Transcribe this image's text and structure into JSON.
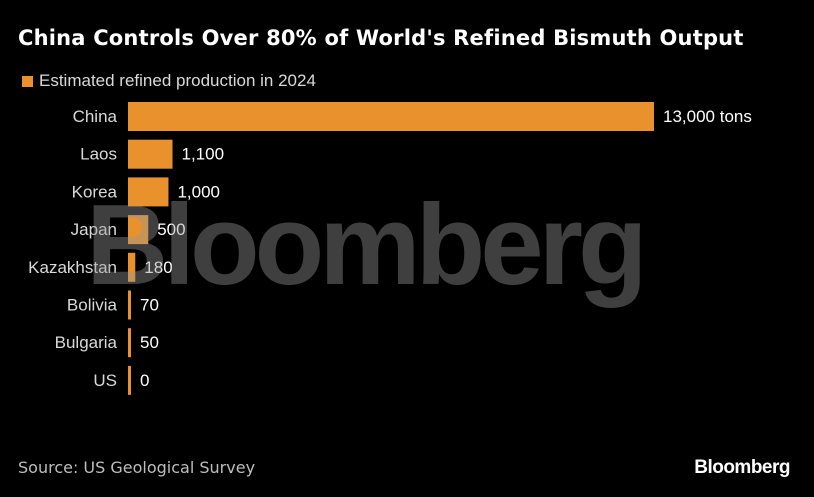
{
  "title": "China Controls Over 80% of World's Refined Bismuth Output",
  "legend": {
    "label": "Estimated refined production in 2024",
    "color": "#e8912d"
  },
  "source": "Source: US Geological Survey",
  "brand": "Bloomberg",
  "watermark": "Bloomberg",
  "chart_data": {
    "type": "bar",
    "orientation": "horizontal",
    "title": "China Controls Over 80% of World's Refined Bismuth Output",
    "categories": [
      "China",
      "Laos",
      "Korea",
      "Japan",
      "Kazakhstan",
      "Bolivia",
      "Bulgaria",
      "US"
    ],
    "series": [
      {
        "name": "Estimated refined production in 2024",
        "values": [
          13000,
          1100,
          1000,
          500,
          180,
          70,
          50,
          0
        ],
        "labels": [
          "13,000 tons",
          "1,100",
          "1,000",
          "500",
          "180",
          "70",
          "50",
          "0"
        ],
        "color": "#e8912d"
      }
    ],
    "xlim": [
      0,
      13000
    ],
    "grid": false,
    "legend_position": "top-left"
  }
}
